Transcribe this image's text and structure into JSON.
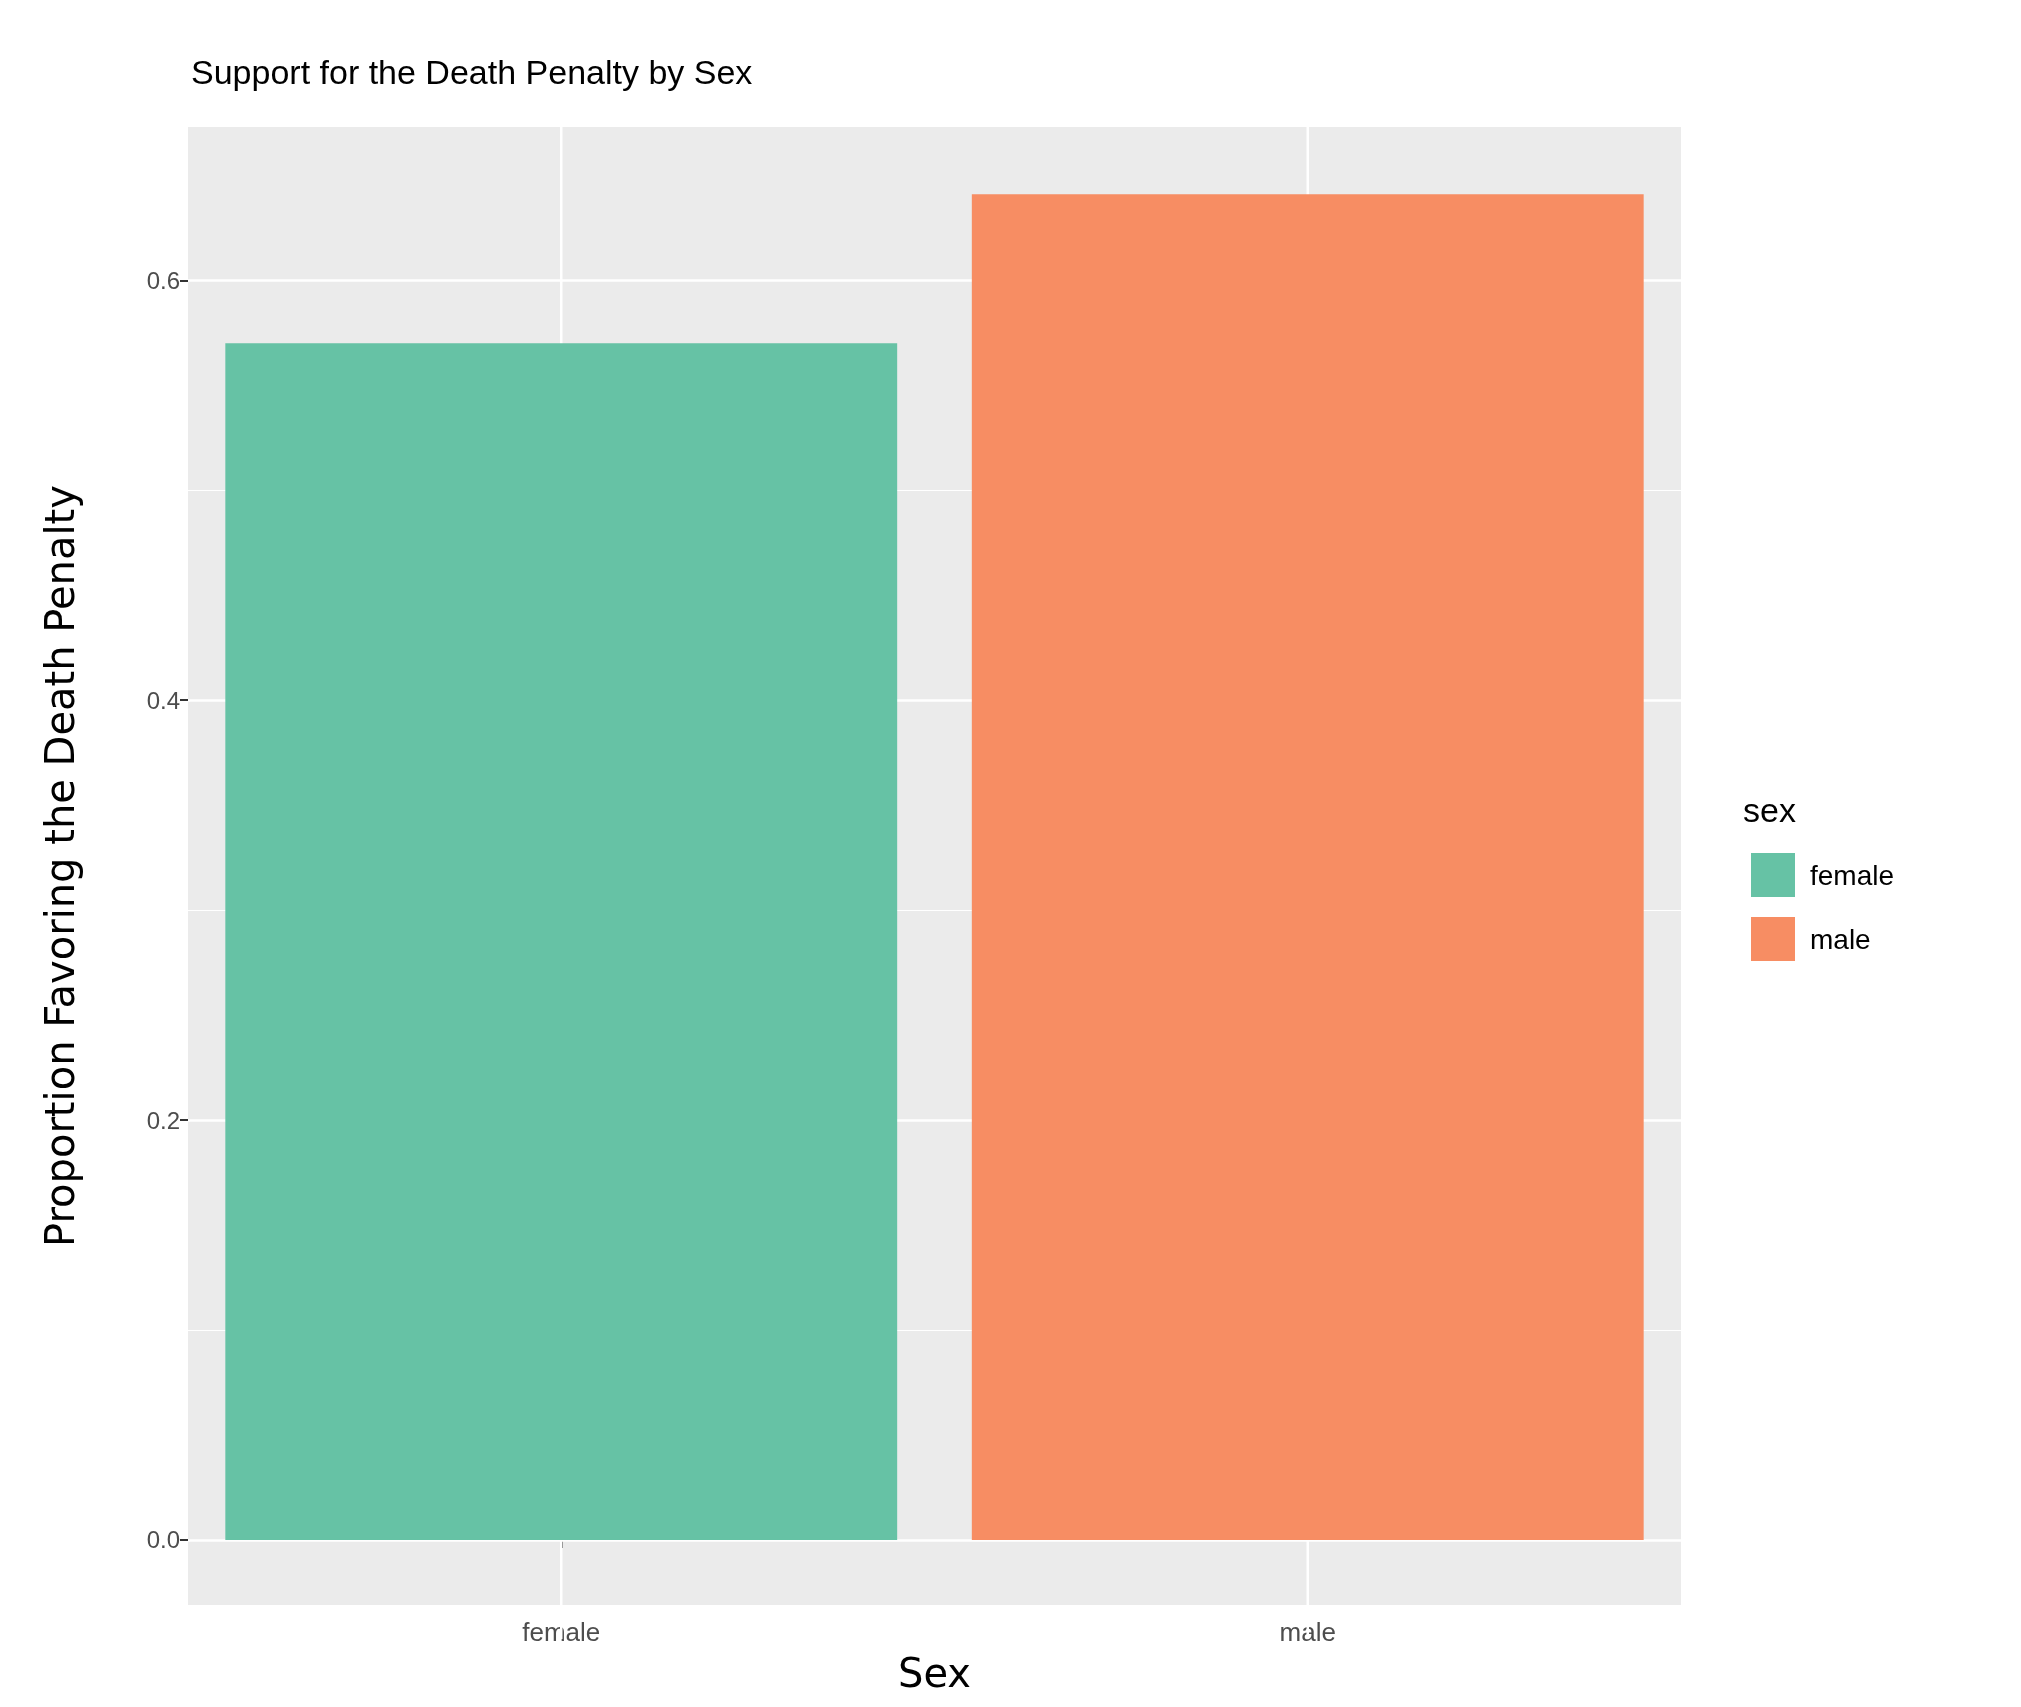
{
  "chart_data": {
    "type": "bar",
    "title": "Support for the Death Penalty by Sex",
    "xlabel": "Sex",
    "ylabel": "Proportion Favoring the Death Penalty",
    "legend_title": "sex",
    "categories": [
      "female",
      "male"
    ],
    "stacked": true,
    "series": [
      {
        "name": "female",
        "color": "#66c2a5",
        "values": [
          0.57,
          null
        ]
      },
      {
        "name": "male",
        "color": "#f78d63",
        "values": [
          null,
          0.641
        ]
      }
    ],
    "ylim": [
      -0.031,
      0.673
    ],
    "yticks": [
      {
        "value": 0,
        "label": "0.0"
      },
      0.2,
      0.4,
      0.6
    ],
    "grid": true,
    "legend": "right"
  }
}
